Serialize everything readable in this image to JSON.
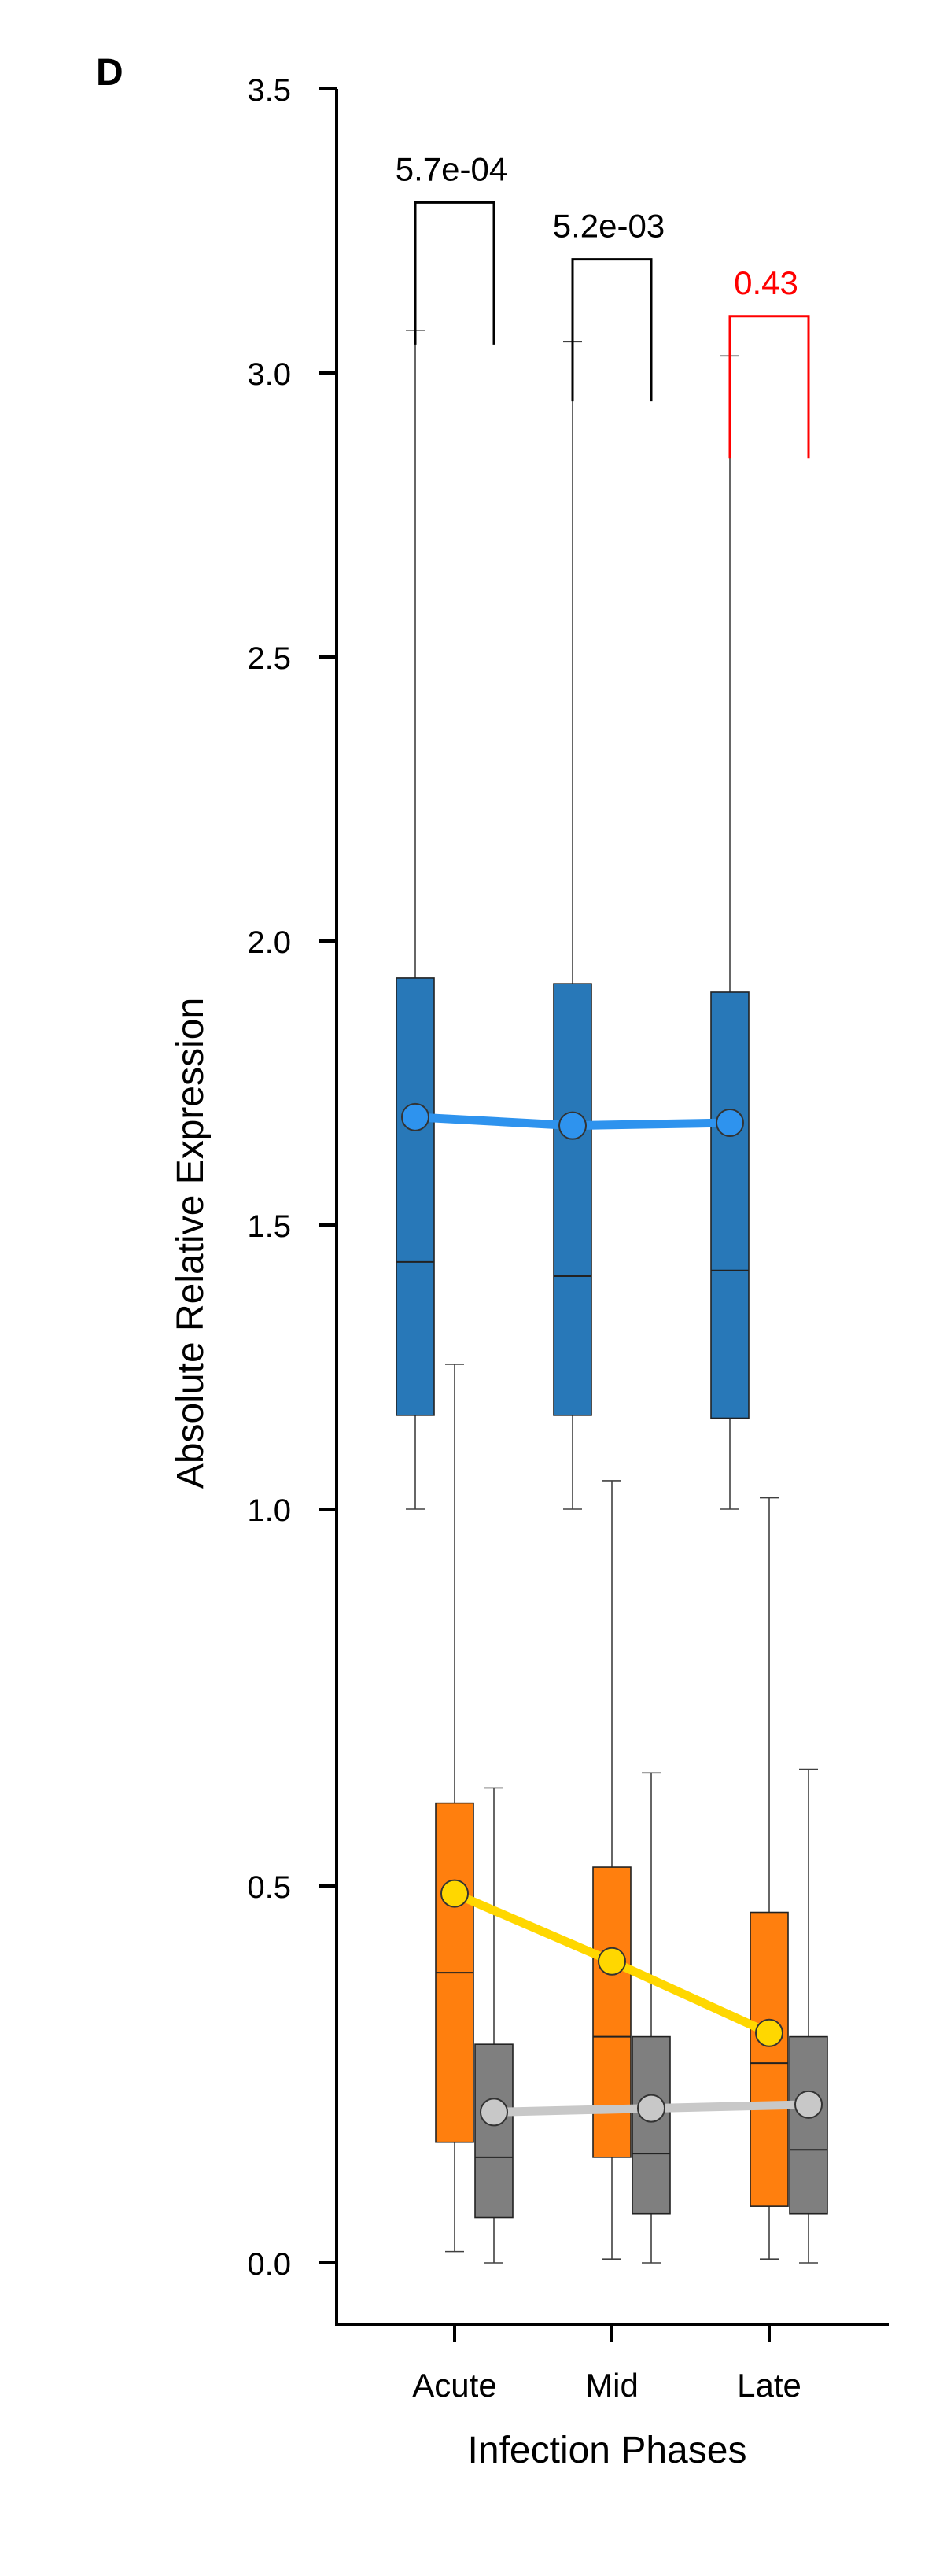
{
  "panel_label": "D",
  "chart_data": {
    "type": "box",
    "title": "",
    "xlabel": "Infection Phases",
    "ylabel": "Absolute Relative Expression",
    "categories": [
      "Acute",
      "Mid",
      "Late"
    ],
    "ylim": [
      -0.1,
      3.5
    ],
    "yticks": [
      0.0,
      0.5,
      1.0,
      1.5,
      2.0,
      2.5,
      3.0,
      3.5
    ],
    "ytick_labels": [
      "0.0",
      "0.5",
      "1.0",
      "1.5",
      "2.0",
      "2.5",
      "3.0",
      "3.5"
    ],
    "grid": false,
    "colors": {
      "blue_box": "#2878b8",
      "blue_mean": "#2e93ee",
      "orange_box": "#ff7f0e",
      "orange_mean": "#ffd700",
      "gray_box": "#7f7f7f",
      "gray_mean": "#c8c8c8",
      "whisker": "#404040",
      "sig": "#000000",
      "nonsig": "#ff0000"
    },
    "series": [
      {
        "key": "blue",
        "offset": -0.25,
        "boxes": [
          {
            "whislo": 1.0,
            "q1": 1.165,
            "med": 1.435,
            "q3": 1.935,
            "whishi": 3.075
          },
          {
            "whislo": 1.0,
            "q1": 1.165,
            "med": 1.41,
            "q3": 1.925,
            "whishi": 3.055
          },
          {
            "whislo": 1.0,
            "q1": 1.16,
            "med": 1.42,
            "q3": 1.91,
            "whishi": 3.03
          }
        ],
        "means": [
          1.69,
          1.675,
          1.68
        ]
      },
      {
        "key": "orange",
        "offset": 0.0,
        "boxes": [
          {
            "whislo": 0.015,
            "q1": 0.16,
            "med": 0.385,
            "q3": 0.61,
            "whishi": 1.255
          },
          {
            "whislo": 0.005,
            "q1": 0.14,
            "med": 0.3,
            "q3": 0.525,
            "whishi": 1.05
          },
          {
            "whislo": 0.005,
            "q1": 0.075,
            "med": 0.265,
            "q3": 0.465,
            "whishi": 1.02
          }
        ],
        "means": [
          0.49,
          0.4,
          0.305
        ]
      },
      {
        "key": "gray",
        "offset": 0.25,
        "boxes": [
          {
            "whislo": 0.0,
            "q1": 0.06,
            "med": 0.14,
            "q3": 0.29,
            "whishi": 0.63
          },
          {
            "whislo": 0.0,
            "q1": 0.065,
            "med": 0.145,
            "q3": 0.3,
            "whishi": 0.65
          },
          {
            "whislo": 0.0,
            "q1": 0.065,
            "med": 0.15,
            "q3": 0.3,
            "whishi": 0.655
          }
        ],
        "means": [
          0.2,
          0.205,
          0.21
        ]
      }
    ],
    "annotations": [
      {
        "label": "5.7e-04",
        "category": 0,
        "top": 3.3,
        "bottom": 3.05,
        "significant": true
      },
      {
        "label": "5.2e-03",
        "category": 1,
        "top": 3.2,
        "bottom": 2.95,
        "significant": true
      },
      {
        "label": "0.43",
        "category": 2,
        "top": 3.1,
        "bottom": 2.85,
        "significant": false
      }
    ]
  }
}
